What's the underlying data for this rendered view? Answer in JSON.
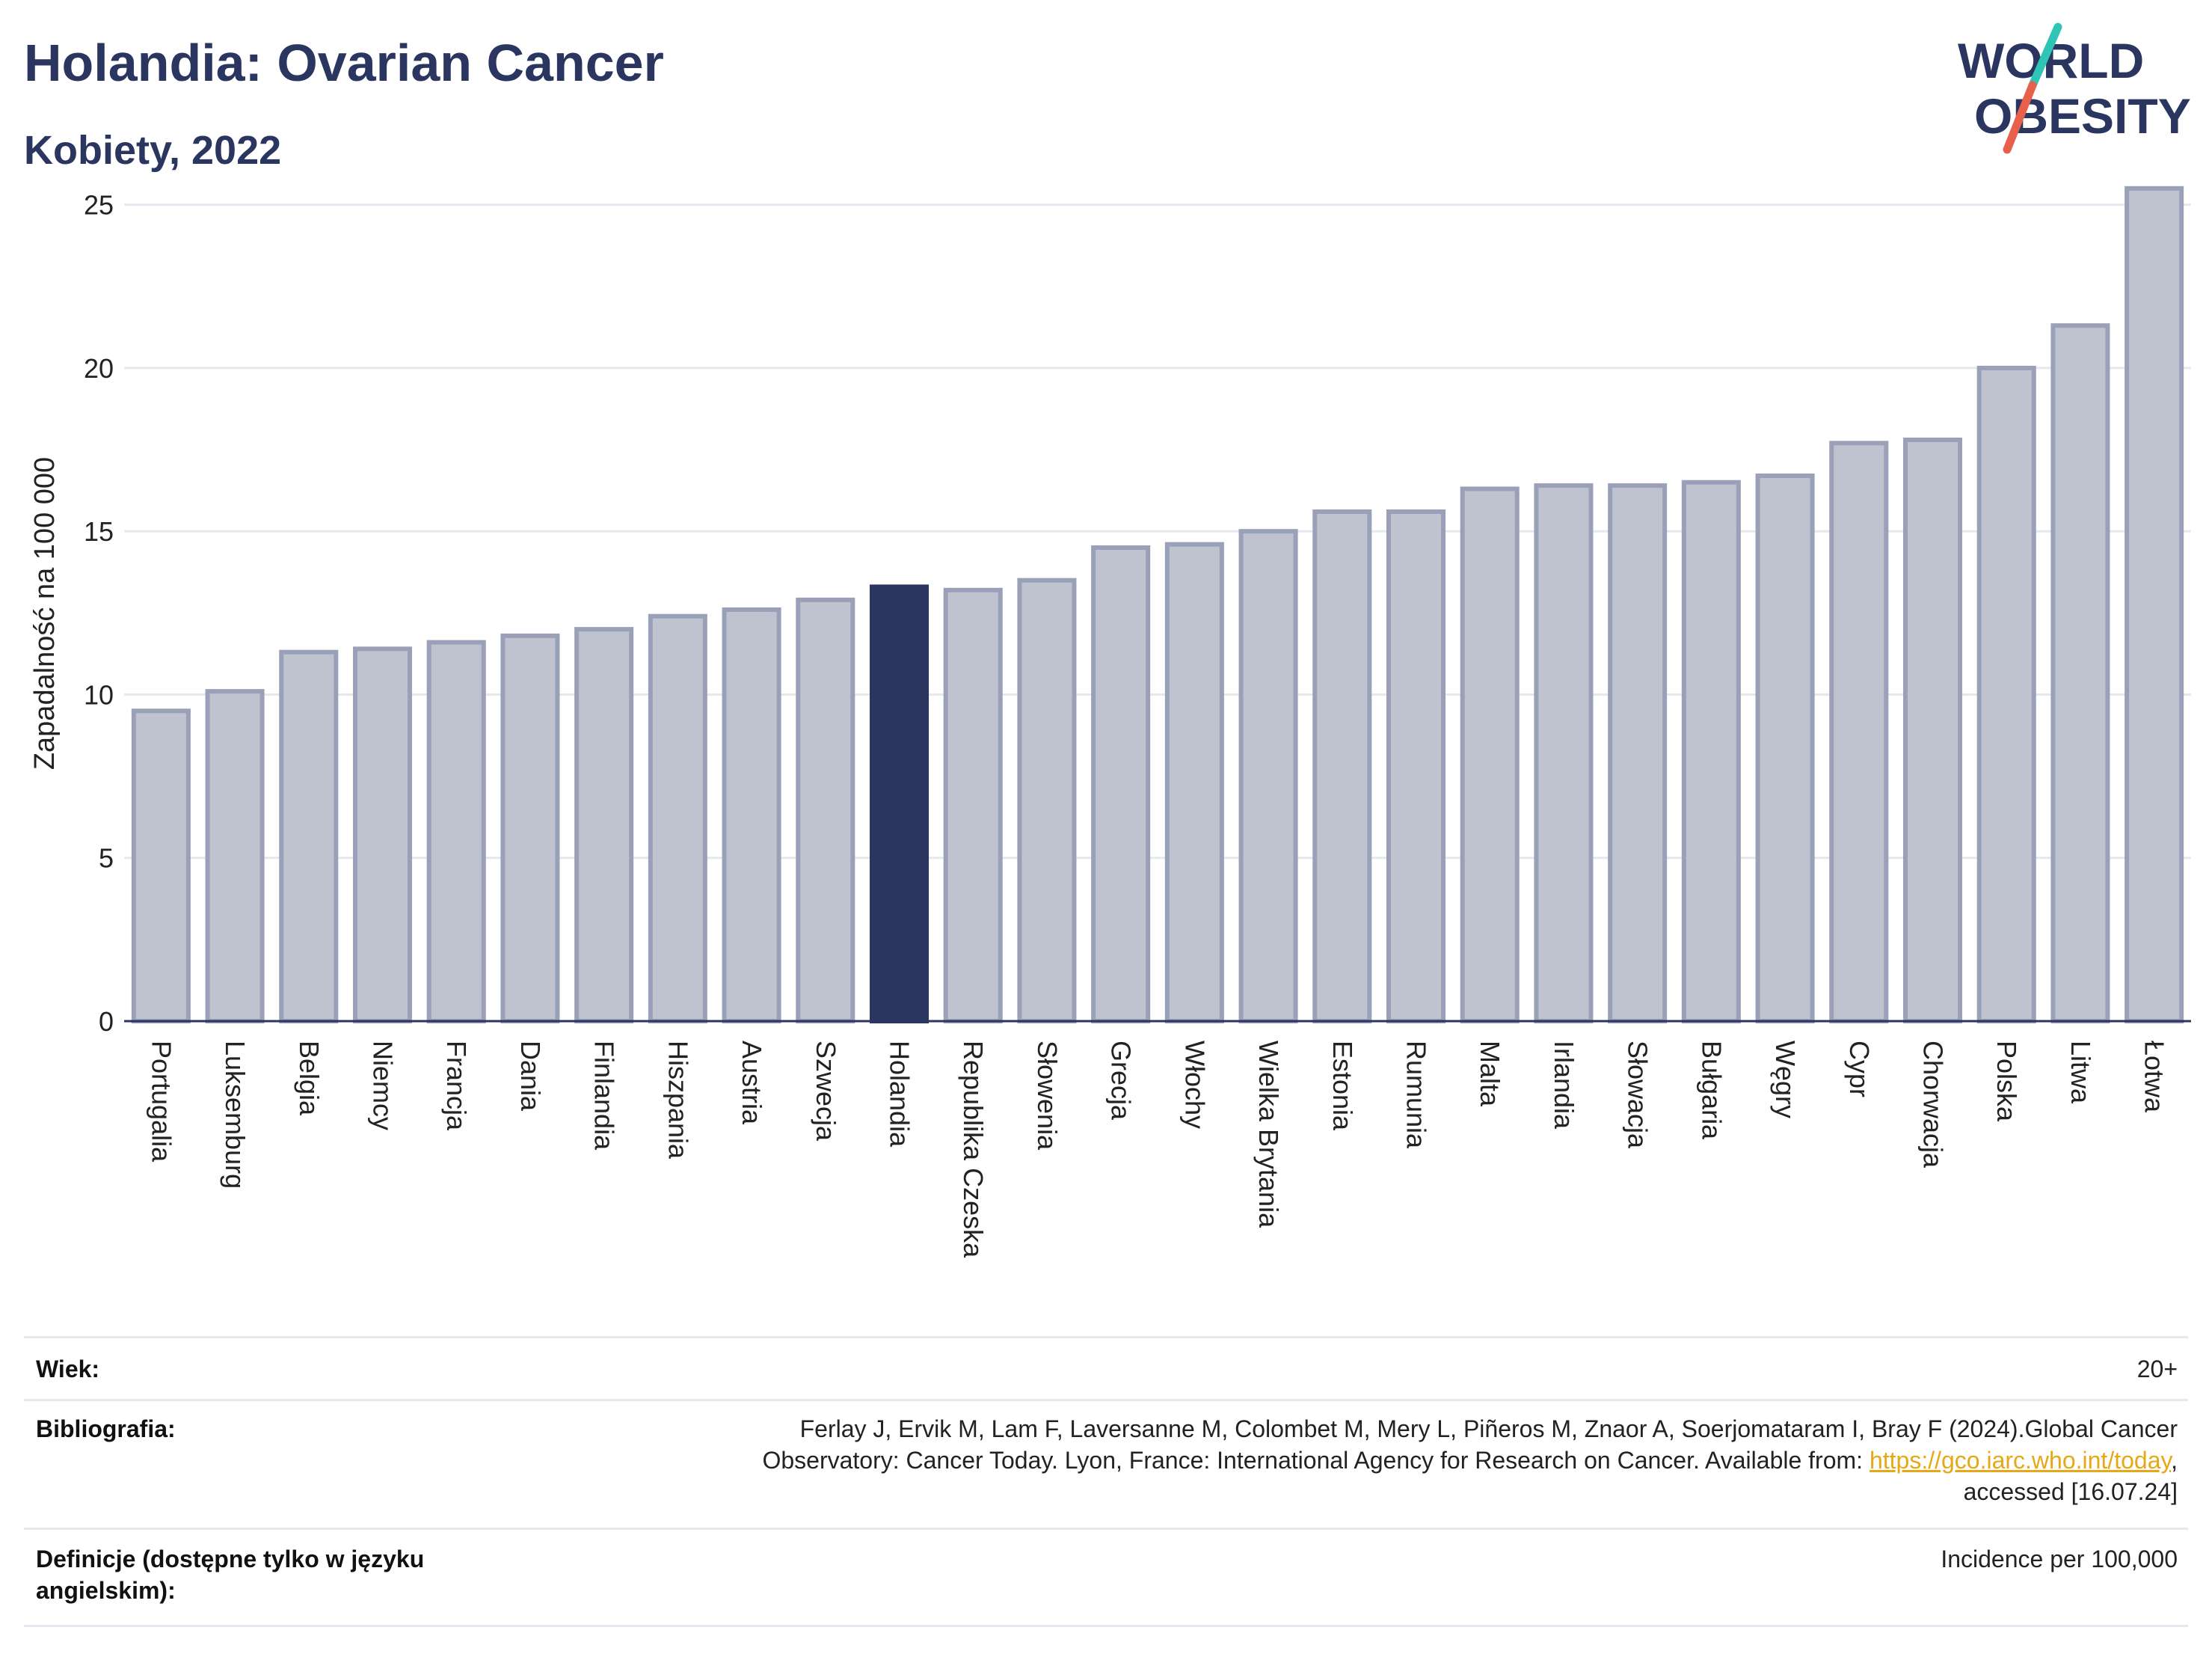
{
  "header": {
    "title": "Holandia: Ovarian Cancer",
    "subtitle": "Kobiety, 2022"
  },
  "logo": {
    "line1": "WORLD",
    "line2": "OBESITY",
    "accent_colors": [
      "#2ec4b6",
      "#e8604c"
    ]
  },
  "colors": {
    "bar_default": "#bfc3d0",
    "bar_border": "#9aa0b8",
    "bar_highlight": "#2a3560",
    "grid": "#e6e8ef",
    "axis": "#2a3560"
  },
  "chart_data": {
    "type": "bar",
    "title": "Holandia: Ovarian Cancer",
    "subtitle": "Kobiety, 2022",
    "xlabel": "",
    "ylabel": "Zapadalność na 100 000",
    "ylim": [
      0,
      26
    ],
    "yticks": [
      0,
      5,
      10,
      15,
      20,
      25
    ],
    "grid": true,
    "highlight": "Holandia",
    "categories": [
      "Portugalia",
      "Luksemburg",
      "Belgia",
      "Niemcy",
      "Francja",
      "Dania",
      "Finlandia",
      "Hiszpania",
      "Austria",
      "Szwecja",
      "Holandia",
      "Republika Czeska",
      "Słowenia",
      "Grecja",
      "Włochy",
      "Wielka Brytania",
      "Estonia",
      "Rumunia",
      "Malta",
      "Irlandia",
      "Słowacja",
      "Bułgaria",
      "Węgry",
      "Cypr",
      "Chorwacja",
      "Polska",
      "Litwa",
      "Łotwa"
    ],
    "values": [
      9.5,
      10.1,
      11.3,
      11.4,
      11.6,
      11.8,
      12.0,
      12.4,
      12.6,
      12.9,
      13.3,
      13.2,
      13.5,
      14.5,
      14.6,
      15.0,
      15.6,
      15.6,
      16.3,
      16.4,
      16.4,
      16.5,
      16.7,
      17.7,
      17.8,
      20.0,
      21.3,
      25.5
    ]
  },
  "footer": {
    "age_label": "Wiek:",
    "age_value": "20+",
    "bib_label": "Bibliografia:",
    "bib_line1": "Ferlay J, Ervik M, Lam F, Laversanne M, Colombet M, Mery L, Piñeros M, Znaor A, Soerjomataram I, Bray F (2024).Global Cancer",
    "bib_line2": "Observatory: Cancer Today. Lyon, France: International Agency for Research on Cancer. Available from: ",
    "bib_link": "https://gco.iarc.who.int/today",
    "bib_line2_end": ",",
    "bib_line3": "accessed [16.07.24]",
    "def_label_line1": "Definicje (dostępne tylko w języku",
    "def_label_line2": "angielskim):",
    "def_value": "Incidence per 100,000"
  }
}
